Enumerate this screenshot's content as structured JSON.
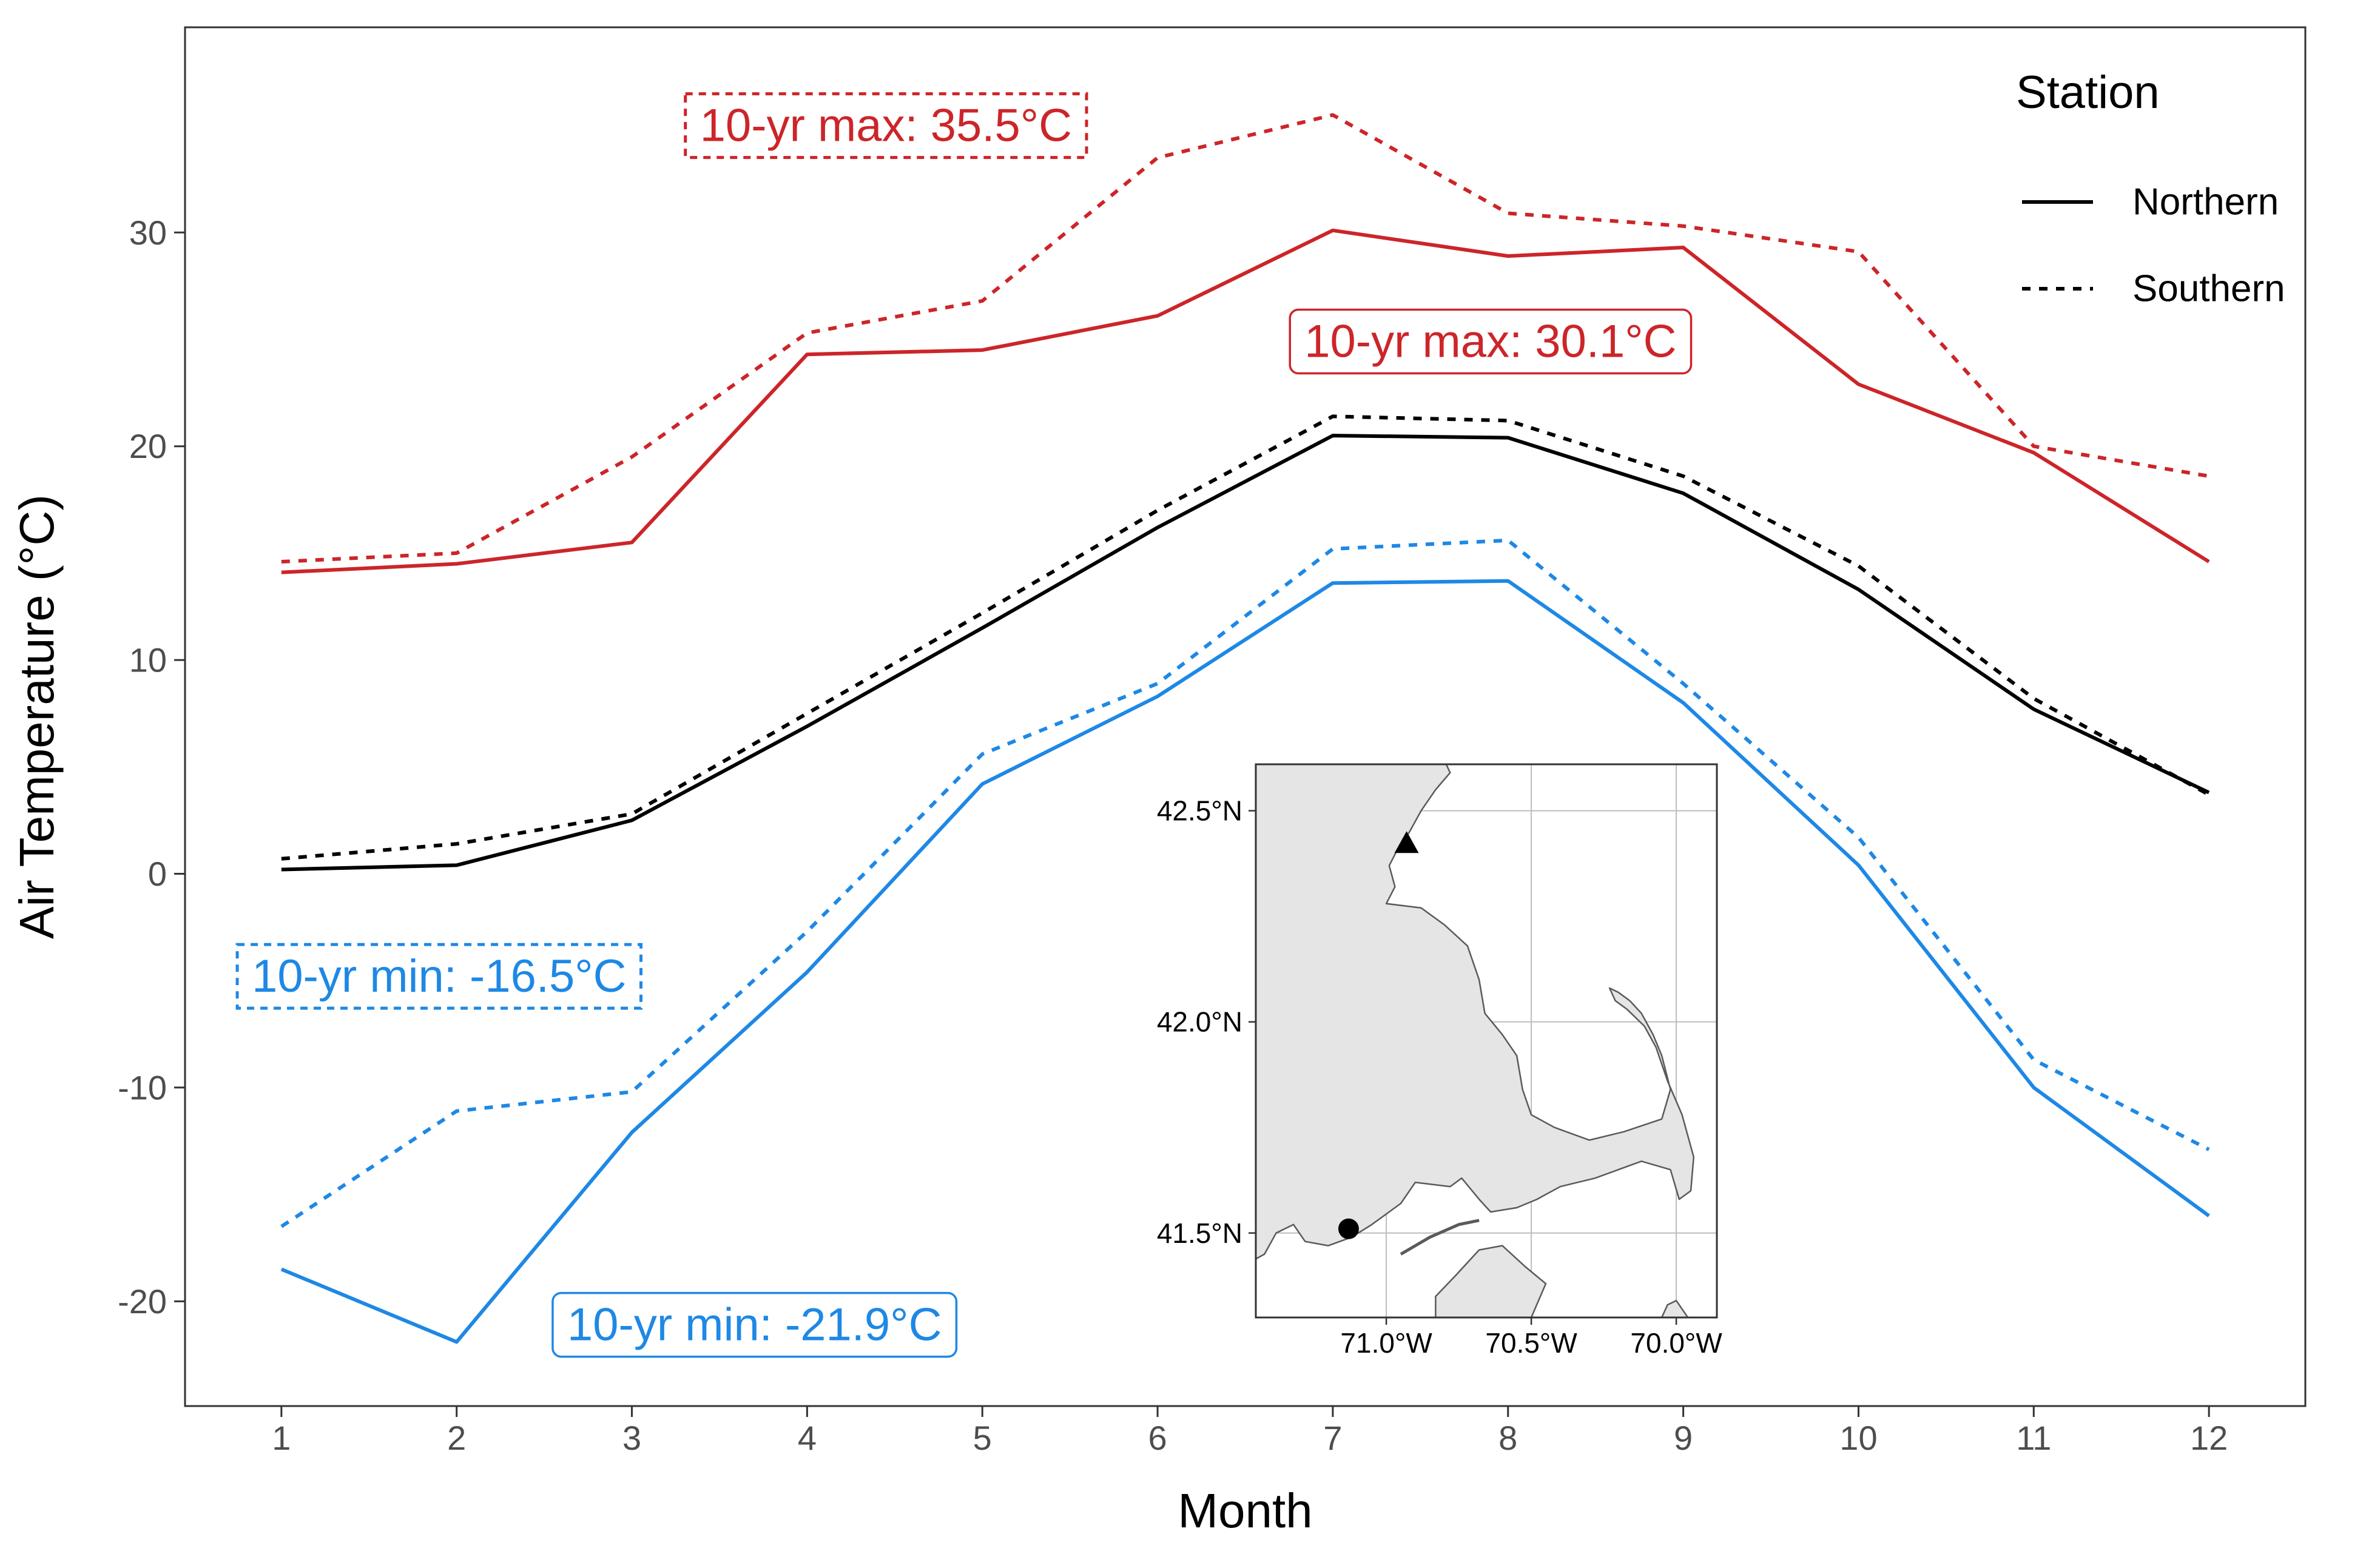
{
  "chart_data": {
    "type": "line",
    "xlabel": "Month",
    "ylabel": "Air Temperature (°C)",
    "x": [
      1,
      2,
      3,
      4,
      5,
      6,
      7,
      8,
      9,
      10,
      11,
      12
    ],
    "xlim": [
      0.45,
      12.55
    ],
    "ylim": [
      -24.9,
      39.6
    ],
    "x_ticks": [
      "1",
      "2",
      "3",
      "4",
      "5",
      "6",
      "7",
      "8",
      "9",
      "10",
      "11",
      "12"
    ],
    "y_ticks": [
      -20,
      -10,
      0,
      10,
      20,
      30
    ],
    "y_tick_labels": [
      "-20",
      "-10",
      "0",
      "10",
      "20",
      "30"
    ],
    "grid": false,
    "legend": {
      "title": "Station",
      "position": "top-right",
      "entries": [
        {
          "label": "Northern",
          "linetype": "solid"
        },
        {
          "label": "Southern",
          "linetype": "dashed"
        }
      ]
    },
    "series": [
      {
        "station": "Northern",
        "stat": "max",
        "color": "#cc2529",
        "linetype": "solid",
        "values": [
          14.1,
          14.5,
          15.5,
          24.3,
          24.5,
          26.1,
          30.1,
          28.9,
          29.3,
          22.9,
          19.7,
          14.6
        ]
      },
      {
        "station": "Southern",
        "stat": "max",
        "color": "#cc2529",
        "linetype": "dashed",
        "values": [
          14.6,
          15.0,
          19.5,
          25.3,
          26.8,
          33.5,
          35.5,
          30.9,
          30.3,
          29.1,
          20.0,
          18.6
        ]
      },
      {
        "station": "Northern",
        "stat": "mean",
        "color": "#000000",
        "linetype": "solid",
        "values": [
          0.2,
          0.4,
          2.5,
          6.9,
          11.5,
          16.2,
          20.5,
          20.4,
          17.8,
          13.3,
          7.7,
          3.8
        ]
      },
      {
        "station": "Southern",
        "stat": "mean",
        "color": "#000000",
        "linetype": "dashed",
        "values": [
          0.7,
          1.4,
          2.8,
          7.5,
          12.2,
          17.0,
          21.4,
          21.2,
          18.6,
          14.4,
          8.2,
          3.7
        ]
      },
      {
        "station": "Northern",
        "stat": "min",
        "color": "#1e88e5",
        "linetype": "solid",
        "values": [
          -18.5,
          -21.9,
          -12.1,
          -4.6,
          4.2,
          8.3,
          13.6,
          13.7,
          8.0,
          0.4,
          -10.0,
          -16.0
        ]
      },
      {
        "station": "Southern",
        "stat": "min",
        "color": "#1e88e5",
        "linetype": "dashed",
        "values": [
          -16.5,
          -11.1,
          -10.2,
          -2.7,
          5.6,
          8.9,
          15.2,
          15.6,
          8.9,
          1.7,
          -8.7,
          -12.9
        ]
      }
    ],
    "annotations": [
      {
        "text": "10-yr max: 35.5°C",
        "color": "#cc2529",
        "border": "dashed",
        "at_month": 4.45,
        "at_value": 35.0
      },
      {
        "text": "10-yr max: 30.1°C",
        "color": "#cc2529",
        "border": "solid",
        "at_month": 7.9,
        "at_value": 24.9
      },
      {
        "text": "10-yr min: -16.5°C",
        "color": "#1e88e5",
        "border": "dashed",
        "at_month": 1.9,
        "at_value": -4.8
      },
      {
        "text": "10-yr min: -21.9°C",
        "color": "#1e88e5",
        "border": "solid",
        "at_month": 3.7,
        "at_value": -21.1
      }
    ]
  },
  "inset_map": {
    "region": "Southeastern Massachusetts and Cape Cod",
    "lon_range": [
      -71.45,
      -69.86
    ],
    "lat_range": [
      41.3,
      42.61
    ],
    "lon_ticks": [
      -71.0,
      -70.5,
      -70.0
    ],
    "lon_tick_labels": [
      "71.0°W",
      "70.5°W",
      "70.0°W"
    ],
    "lat_ticks": [
      41.5,
      42.0,
      42.5
    ],
    "lat_tick_labels": [
      "41.5°N",
      "42.0°N",
      "42.5°N"
    ],
    "land_color": "#e5e5e5",
    "stations": [
      {
        "name": "Northern",
        "marker": "triangle",
        "lon": -70.93,
        "lat": 42.42
      },
      {
        "name": "Southern",
        "marker": "circle",
        "lon": -71.13,
        "lat": 41.51
      }
    ]
  }
}
